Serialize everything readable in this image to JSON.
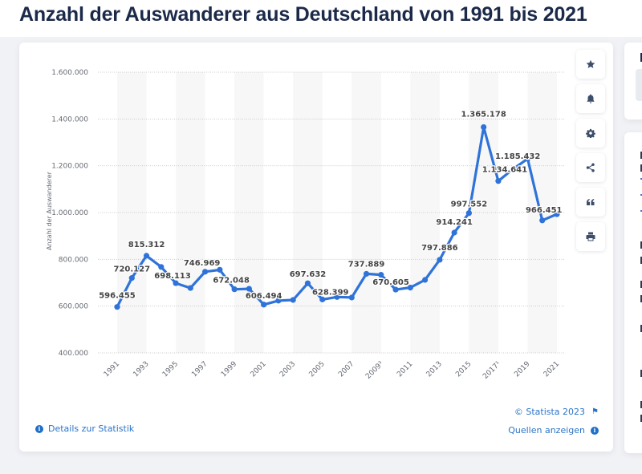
{
  "page": {
    "title": "Anzahl der Auswanderer aus Deutschland von 1991 bis 2021"
  },
  "toolbar": {
    "buttons": [
      {
        "name": "favorite",
        "icon": "star-icon"
      },
      {
        "name": "notification",
        "icon": "bell-icon"
      },
      {
        "name": "settings",
        "icon": "gear-icon"
      },
      {
        "name": "share",
        "icon": "share-icon"
      },
      {
        "name": "cite",
        "icon": "quote-icon"
      },
      {
        "name": "print",
        "icon": "print-icon"
      }
    ]
  },
  "footer": {
    "details_label": "Details zur Statistik",
    "copyright": "© Statista 2023",
    "sources_label": "Quellen anzeigen"
  },
  "colors": {
    "series": "#2f73d9",
    "band": "#f7f7f7",
    "grid": "#cccccc",
    "link": "#2a74c9"
  },
  "chart_data": {
    "type": "line",
    "title": "Anzahl der Auswanderer aus Deutschland von 1991 bis 2021",
    "xlabel": "",
    "ylabel": "Anzahl der Auswanderer",
    "ylim": [
      400000,
      1600000
    ],
    "yticks": [
      400000,
      600000,
      800000,
      1000000,
      1200000,
      1400000,
      1600000
    ],
    "ytick_labels": [
      "400.000",
      "600.000",
      "800.000",
      "1.000.000",
      "1.200.000",
      "1.400.000",
      "1.600.000"
    ],
    "grid": true,
    "legend": "none",
    "x": [
      1991,
      1992,
      1993,
      1994,
      1995,
      1996,
      1997,
      1998,
      1999,
      2000,
      2001,
      2002,
      2003,
      2004,
      2005,
      2006,
      2007,
      2008,
      2009,
      2010,
      2011,
      2012,
      2013,
      2014,
      2015,
      2016,
      2017,
      2018,
      2019,
      2020,
      2021
    ],
    "xtick_labels": [
      "1991",
      "1993",
      "1995",
      "1997",
      "1999",
      "2001",
      "2003",
      "2005",
      "2007",
      "2009³",
      "2011",
      "2013",
      "2015",
      "2017¹",
      "2019",
      "2021"
    ],
    "series": [
      {
        "name": "Anzahl der Auswanderer",
        "values": [
          596455,
          720127,
          815312,
          767555,
          698113,
          677494,
          746969,
          755358,
          672048,
          674038,
          606494,
          623255,
          626330,
          697632,
          628399,
          639064,
          636854,
          737889,
          733796,
          670605,
          678969,
          712042,
          797886,
          914241,
          997552,
          1365178,
          1134641,
          1185432,
          1230000,
          966451,
          993000
        ]
      }
    ],
    "data_labels": [
      {
        "year": 1991,
        "text": "596.455"
      },
      {
        "year": 1992,
        "text": "720.127"
      },
      {
        "year": 1993,
        "text": "815.312"
      },
      {
        "year": 1995,
        "text": "698.113"
      },
      {
        "year": 1997,
        "text": "746.969"
      },
      {
        "year": 1999,
        "text": "672.048"
      },
      {
        "year": 2001,
        "text": "606.494"
      },
      {
        "year": 2004,
        "text": "697.632"
      },
      {
        "year": 2005,
        "text": "628.399"
      },
      {
        "year": 2008,
        "text": "737.889"
      },
      {
        "year": 2010,
        "text": "670.605"
      },
      {
        "year": 2013,
        "text": "797.886"
      },
      {
        "year": 2014,
        "text": "914.241"
      },
      {
        "year": 2015,
        "text": "997.552"
      },
      {
        "year": 2016,
        "text": "1.365.178"
      },
      {
        "year": 2017,
        "text": "1.134.641"
      },
      {
        "year": 2018,
        "text": "1.185.432"
      },
      {
        "year": 2020,
        "text": "966.451"
      }
    ]
  }
}
